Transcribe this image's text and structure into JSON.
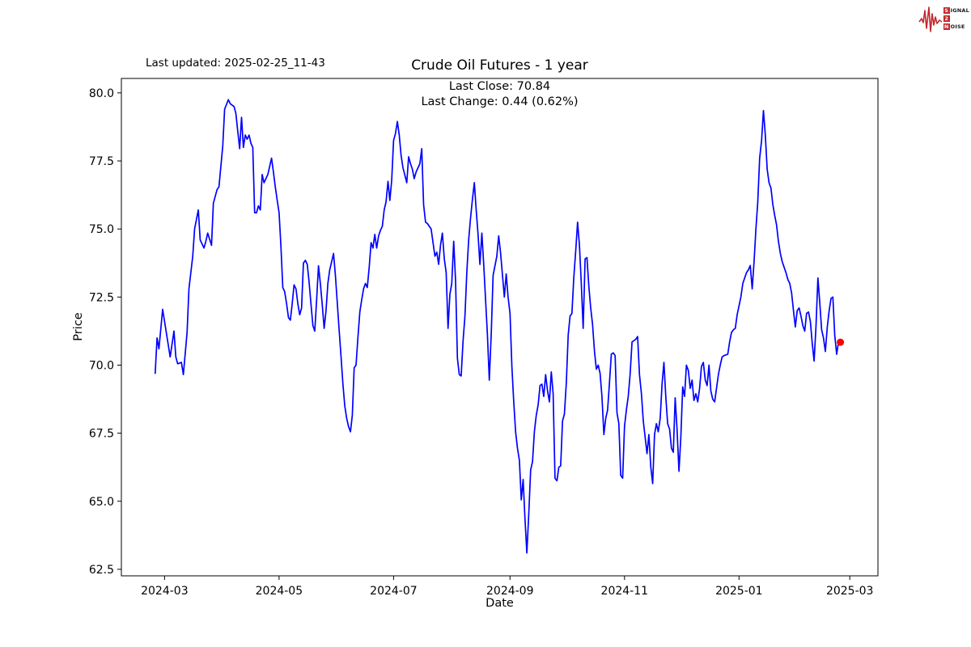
{
  "branding": {
    "signal": "S",
    "ignal": "IGNAL",
    "two": "2",
    "noise": "N",
    "oise": "OISE"
  },
  "header": {
    "last_updated": "Last updated: 2025-02-25_11-43",
    "title": "Crude Oil Futures - 1 year",
    "annotation_line1": "Last Close: 70.84",
    "annotation_line2": "Last Change: 0.44 (0.62%)"
  },
  "chart_data": {
    "type": "line",
    "title": "Crude Oil Futures - 1 year",
    "xlabel": "Date",
    "ylabel": "Price",
    "grid": false,
    "legend": "none",
    "xlim": [
      "2024-02-07",
      "2025-03-16"
    ],
    "ylim": [
      62.26,
      80.53
    ],
    "x_ticks": [
      "2024-03",
      "2024-05",
      "2024-07",
      "2024-09",
      "2024-11",
      "2025-01",
      "2025-03"
    ],
    "y_ticks": [
      62.5,
      65.0,
      67.5,
      70.0,
      72.5,
      75.0,
      77.5,
      80.0
    ],
    "line_color": "#0000ff",
    "marker_color": "#ff0000",
    "last_close": 70.84,
    "last_change": "0.44 (0.62%)",
    "series": [
      {
        "name": "Crude Oil Futures",
        "dates": [
          "2024-02-25",
          "2024-02-26",
          "2024-02-27",
          "2024-02-29",
          "2024-03-04",
          "2024-03-06",
          "2024-03-07",
          "2024-03-08",
          "2024-03-10",
          "2024-03-11",
          "2024-03-13",
          "2024-03-14",
          "2024-03-16",
          "2024-03-17",
          "2024-03-19",
          "2024-03-20",
          "2024-03-22",
          "2024-03-23",
          "2024-03-24",
          "2024-03-26",
          "2024-03-27",
          "2024-03-28",
          "2024-03-29",
          "2024-03-30",
          "2024-04-01",
          "2024-04-02",
          "2024-04-04",
          "2024-04-05",
          "2024-04-07",
          "2024-04-08",
          "2024-04-09",
          "2024-04-10",
          "2024-04-11",
          "2024-04-12",
          "2024-04-13",
          "2024-04-14",
          "2024-04-15",
          "2024-04-16",
          "2024-04-17",
          "2024-04-18",
          "2024-04-19",
          "2024-04-20",
          "2024-04-21",
          "2024-04-22",
          "2024-04-23",
          "2024-04-25",
          "2024-04-26",
          "2024-04-27",
          "2024-04-28",
          "2024-04-29",
          "2024-04-30",
          "2024-05-01",
          "2024-05-02",
          "2024-05-03",
          "2024-05-04",
          "2024-05-05",
          "2024-05-06",
          "2024-05-07",
          "2024-05-08",
          "2024-05-09",
          "2024-05-10",
          "2024-05-11",
          "2024-05-12",
          "2024-05-13",
          "2024-05-14",
          "2024-05-15",
          "2024-05-16",
          "2024-05-17",
          "2024-05-18",
          "2024-05-19",
          "2024-05-20",
          "2024-05-21",
          "2024-05-22",
          "2024-05-23",
          "2024-05-24",
          "2024-05-25",
          "2024-05-26",
          "2024-05-27",
          "2024-05-28",
          "2024-05-29",
          "2024-05-30",
          "2024-05-31",
          "2024-06-01",
          "2024-06-02",
          "2024-06-03",
          "2024-06-04",
          "2024-06-05",
          "2024-06-06",
          "2024-06-07",
          "2024-06-08",
          "2024-06-09",
          "2024-06-10",
          "2024-06-11",
          "2024-06-12",
          "2024-06-13",
          "2024-06-14",
          "2024-06-15",
          "2024-06-16",
          "2024-06-17",
          "2024-06-18",
          "2024-06-19",
          "2024-06-20",
          "2024-06-21",
          "2024-06-22",
          "2024-06-23",
          "2024-06-24",
          "2024-06-25",
          "2024-06-26",
          "2024-06-27",
          "2024-06-28",
          "2024-06-29",
          "2024-06-30",
          "2024-07-01",
          "2024-07-02",
          "2024-07-03",
          "2024-07-04",
          "2024-07-05",
          "2024-07-06",
          "2024-07-08",
          "2024-07-09",
          "2024-07-10",
          "2024-07-11",
          "2024-07-12",
          "2024-07-13",
          "2024-07-15",
          "2024-07-16",
          "2024-07-17",
          "2024-07-18",
          "2024-07-19",
          "2024-07-21",
          "2024-07-23",
          "2024-07-24",
          "2024-07-25",
          "2024-07-26",
          "2024-07-27",
          "2024-07-28",
          "2024-07-29",
          "2024-07-30",
          "2024-07-31",
          "2024-08-01",
          "2024-08-02",
          "2024-08-03",
          "2024-08-04",
          "2024-08-05",
          "2024-08-06",
          "2024-08-07",
          "2024-08-08",
          "2024-08-09",
          "2024-08-10",
          "2024-08-11",
          "2024-08-12",
          "2024-08-13",
          "2024-08-14",
          "2024-08-15",
          "2024-08-16",
          "2024-08-17",
          "2024-08-18",
          "2024-08-19",
          "2024-08-20",
          "2024-08-21",
          "2024-08-22",
          "2024-08-23",
          "2024-08-25",
          "2024-08-26",
          "2024-08-27",
          "2024-08-28",
          "2024-08-29",
          "2024-08-30",
          "2024-08-31",
          "2024-09-01",
          "2024-09-02",
          "2024-09-03",
          "2024-09-04",
          "2024-09-05",
          "2024-09-06",
          "2024-09-07",
          "2024-09-08",
          "2024-09-09",
          "2024-09-10",
          "2024-09-11",
          "2024-09-12",
          "2024-09-13",
          "2024-09-14",
          "2024-09-15",
          "2024-09-16",
          "2024-09-17",
          "2024-09-18",
          "2024-09-19",
          "2024-09-20",
          "2024-09-21",
          "2024-09-22",
          "2024-09-23",
          "2024-09-24",
          "2024-09-25",
          "2024-09-26",
          "2024-09-27",
          "2024-09-28",
          "2024-09-29",
          "2024-09-30",
          "2024-10-01",
          "2024-10-02",
          "2024-10-03",
          "2024-10-04",
          "2024-10-05",
          "2024-10-06",
          "2024-10-07",
          "2024-10-08",
          "2024-10-09",
          "2024-10-10",
          "2024-10-11",
          "2024-10-12",
          "2024-10-13",
          "2024-10-14",
          "2024-10-15",
          "2024-10-16",
          "2024-10-17",
          "2024-10-18",
          "2024-10-19",
          "2024-10-20",
          "2024-10-21",
          "2024-10-22",
          "2024-10-23",
          "2024-10-24",
          "2024-10-25",
          "2024-10-26",
          "2024-10-27",
          "2024-10-28",
          "2024-10-29",
          "2024-10-30",
          "2024-10-31",
          "2024-11-01",
          "2024-11-02",
          "2024-11-03",
          "2024-11-04",
          "2024-11-05",
          "2024-11-06",
          "2024-11-07",
          "2024-11-08",
          "2024-11-09",
          "2024-11-10",
          "2024-11-11",
          "2024-11-12",
          "2024-11-13",
          "2024-11-14",
          "2024-11-15",
          "2024-11-16",
          "2024-11-17",
          "2024-11-18",
          "2024-11-19",
          "2024-11-20",
          "2024-11-21",
          "2024-11-22",
          "2024-11-23",
          "2024-11-24",
          "2024-11-25",
          "2024-11-26",
          "2024-11-27",
          "2024-11-28",
          "2024-11-29",
          "2024-11-30",
          "2024-12-01",
          "2024-12-02",
          "2024-12-03",
          "2024-12-04",
          "2024-12-05",
          "2024-12-06",
          "2024-12-07",
          "2024-12-08",
          "2024-12-09",
          "2024-12-10",
          "2024-12-11",
          "2024-12-12",
          "2024-12-13",
          "2024-12-14",
          "2024-12-15",
          "2024-12-16",
          "2024-12-17",
          "2024-12-18",
          "2024-12-19",
          "2024-12-20",
          "2024-12-21",
          "2024-12-22",
          "2024-12-23",
          "2024-12-24",
          "2024-12-26",
          "2024-12-27",
          "2024-12-28",
          "2024-12-29",
          "2024-12-30",
          "2024-12-31",
          "2025-01-02",
          "2025-01-03",
          "2025-01-04",
          "2025-01-05",
          "2025-01-06",
          "2025-01-07",
          "2025-01-08",
          "2025-01-09",
          "2025-01-10",
          "2025-01-11",
          "2025-01-12",
          "2025-01-13",
          "2025-01-14",
          "2025-01-15",
          "2025-01-16",
          "2025-01-17",
          "2025-01-18",
          "2025-01-19",
          "2025-01-20",
          "2025-01-21",
          "2025-01-22",
          "2025-01-23",
          "2025-01-24",
          "2025-01-25",
          "2025-01-26",
          "2025-01-27",
          "2025-01-28",
          "2025-01-29",
          "2025-01-30",
          "2025-01-31",
          "2025-02-01",
          "2025-02-02",
          "2025-02-03",
          "2025-02-04",
          "2025-02-05",
          "2025-02-06",
          "2025-02-07",
          "2025-02-08",
          "2025-02-09",
          "2025-02-10",
          "2025-02-11",
          "2025-02-12",
          "2025-02-13",
          "2025-02-14",
          "2025-02-15",
          "2025-02-16",
          "2025-02-17",
          "2025-02-18",
          "2025-02-19",
          "2025-02-20",
          "2025-02-21",
          "2025-02-22",
          "2025-02-23",
          "2025-02-24"
        ],
        "values": [
          69.7,
          71.0,
          70.6,
          72.05,
          70.3,
          71.25,
          70.3,
          70.05,
          70.1,
          69.65,
          71.2,
          72.8,
          74.0,
          75.0,
          75.7,
          74.6,
          74.3,
          74.55,
          74.85,
          74.4,
          75.95,
          76.2,
          76.45,
          76.55,
          78.05,
          79.4,
          79.75,
          79.6,
          79.5,
          79.25,
          78.6,
          77.95,
          79.1,
          78.0,
          78.45,
          78.3,
          78.45,
          78.15,
          78.0,
          75.6,
          75.6,
          75.85,
          75.7,
          77.0,
          76.7,
          77.0,
          77.3,
          77.6,
          77.1,
          76.55,
          76.05,
          75.6,
          74.35,
          72.85,
          72.7,
          72.25,
          71.75,
          71.65,
          72.25,
          72.95,
          72.8,
          72.25,
          71.85,
          72.1,
          73.75,
          73.85,
          73.7,
          73.05,
          72.25,
          71.45,
          71.25,
          72.4,
          73.65,
          73.0,
          72.2,
          71.35,
          72.0,
          73.0,
          73.5,
          73.8,
          74.1,
          73.3,
          72.3,
          71.3,
          70.3,
          69.3,
          68.5,
          68.05,
          67.75,
          67.55,
          68.15,
          69.9,
          70.0,
          71.0,
          71.95,
          72.4,
          72.8,
          73.0,
          72.85,
          73.6,
          74.5,
          74.3,
          74.8,
          74.3,
          74.75,
          74.95,
          75.1,
          75.7,
          76.0,
          76.75,
          76.05,
          76.8,
          78.25,
          78.5,
          78.95,
          78.45,
          77.7,
          77.25,
          76.7,
          77.65,
          77.4,
          77.2,
          76.85,
          77.1,
          77.4,
          77.95,
          75.9,
          75.25,
          75.2,
          75.0,
          74.0,
          74.15,
          73.7,
          74.4,
          74.85,
          73.9,
          73.4,
          71.35,
          72.6,
          73.0,
          74.55,
          73.1,
          70.25,
          69.65,
          69.6,
          70.9,
          71.8,
          73.4,
          74.6,
          75.4,
          76.1,
          76.7,
          75.7,
          74.8,
          73.7,
          74.85,
          73.7,
          72.4,
          71.1,
          69.45,
          71.15,
          73.3,
          74.0,
          74.75,
          74.1,
          73.3,
          72.5,
          73.35,
          72.5,
          71.9,
          69.95,
          68.65,
          67.55,
          66.95,
          66.5,
          65.05,
          65.8,
          64.35,
          63.1,
          64.55,
          66.15,
          66.45,
          67.55,
          68.15,
          68.55,
          69.25,
          69.3,
          68.85,
          69.65,
          69.05,
          68.65,
          69.75,
          68.95,
          65.85,
          65.75,
          66.25,
          66.3,
          67.95,
          68.2,
          69.35,
          71.1,
          71.8,
          71.9,
          73.2,
          74.2,
          75.25,
          74.4,
          73.0,
          71.35,
          73.9,
          73.95,
          72.9,
          72.1,
          71.5,
          70.5,
          69.85,
          70.0,
          69.7,
          68.85,
          67.45,
          68.05,
          68.35,
          69.35,
          70.4,
          70.45,
          70.35,
          68.25,
          67.85,
          65.95,
          65.85,
          67.75,
          68.35,
          68.85,
          69.65,
          70.85,
          70.9,
          70.95,
          71.05,
          69.65,
          68.95,
          67.95,
          67.35,
          66.75,
          67.45,
          66.25,
          65.65,
          67.45,
          67.85,
          67.55,
          68.05,
          69.3,
          70.1,
          68.85,
          67.85,
          67.65,
          66.95,
          66.8,
          68.8,
          67.65,
          66.1,
          67.35,
          69.2,
          68.85,
          70.0,
          69.8,
          69.15,
          69.45,
          68.7,
          68.95,
          68.65,
          69.15,
          69.95,
          70.1,
          69.45,
          69.25,
          70.0,
          69.05,
          68.75,
          68.65,
          69.15,
          69.65,
          70.0,
          70.3,
          70.35,
          70.4,
          70.85,
          71.2,
          71.3,
          71.35,
          71.85,
          72.5,
          73.0,
          73.2,
          73.4,
          73.5,
          73.66,
          72.8,
          73.8,
          75.0,
          76.0,
          77.6,
          78.25,
          79.35,
          78.45,
          77.2,
          76.7,
          76.5,
          75.9,
          75.5,
          75.15,
          74.55,
          74.1,
          73.8,
          73.6,
          73.4,
          73.15,
          73.0,
          72.65,
          72.0,
          71.4,
          72.0,
          72.1,
          71.8,
          71.45,
          71.25,
          71.9,
          71.95,
          71.6,
          70.8,
          70.15,
          71.4,
          73.2,
          72.3,
          71.3,
          71.0,
          70.5,
          71.4,
          72.0,
          72.45,
          72.5,
          71.1,
          70.4,
          70.85,
          70.84
        ]
      }
    ]
  }
}
